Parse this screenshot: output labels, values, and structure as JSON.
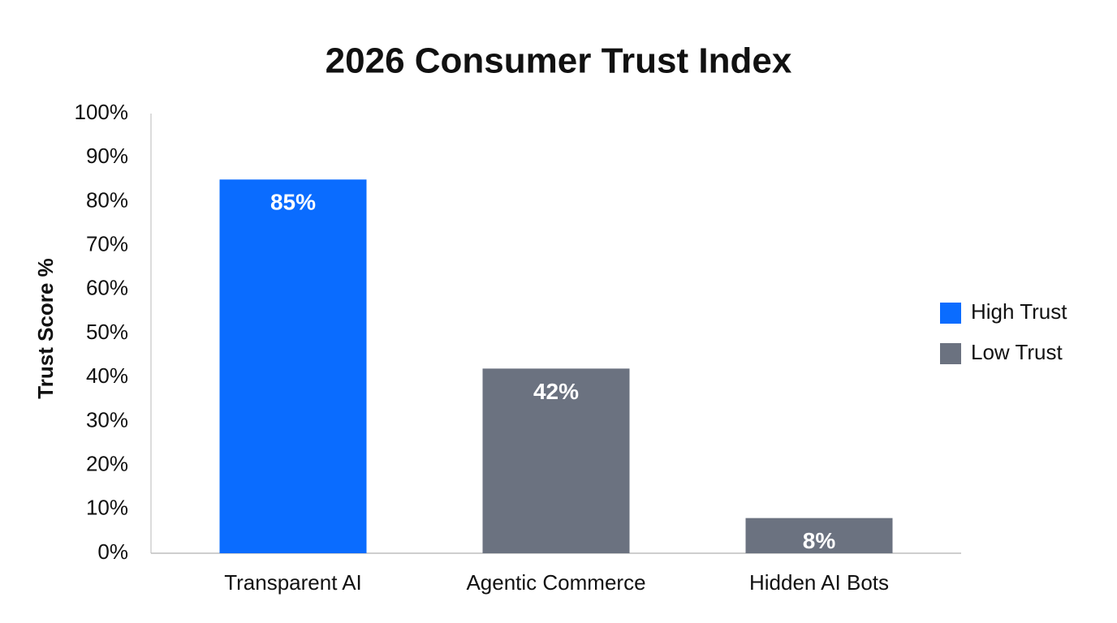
{
  "chart_data": {
    "type": "bar",
    "title": "2026 Consumer Trust Index",
    "y_label": "Trust Score %",
    "categories": [
      "Transparent AI",
      "Agentic Commerce",
      "Hidden AI Bots"
    ],
    "series": [
      {
        "name": "High Trust",
        "color": "#0a6cff",
        "values": [
          85,
          null,
          null
        ],
        "value_labels": [
          "85%",
          null,
          null
        ]
      },
      {
        "name": "Low Trust",
        "color": "#6b7280",
        "values": [
          null,
          42,
          8
        ],
        "value_labels": [
          null,
          "42%",
          "8%"
        ]
      }
    ],
    "ylim": [
      0,
      100
    ],
    "yticks": [
      {
        "value": 0,
        "label": "0%"
      },
      {
        "value": 10,
        "label": "10%"
      },
      {
        "value": 20,
        "label": "20%"
      },
      {
        "value": 30,
        "label": "30%"
      },
      {
        "value": 40,
        "label": "40%"
      },
      {
        "value": 50,
        "label": "50%"
      },
      {
        "value": 60,
        "label": "60%"
      },
      {
        "value": 70,
        "label": "70%"
      },
      {
        "value": 80,
        "label": "80%"
      },
      {
        "value": 90,
        "label": "90%"
      },
      {
        "value": 100,
        "label": "100%"
      }
    ],
    "grid": false,
    "legend": "right"
  }
}
